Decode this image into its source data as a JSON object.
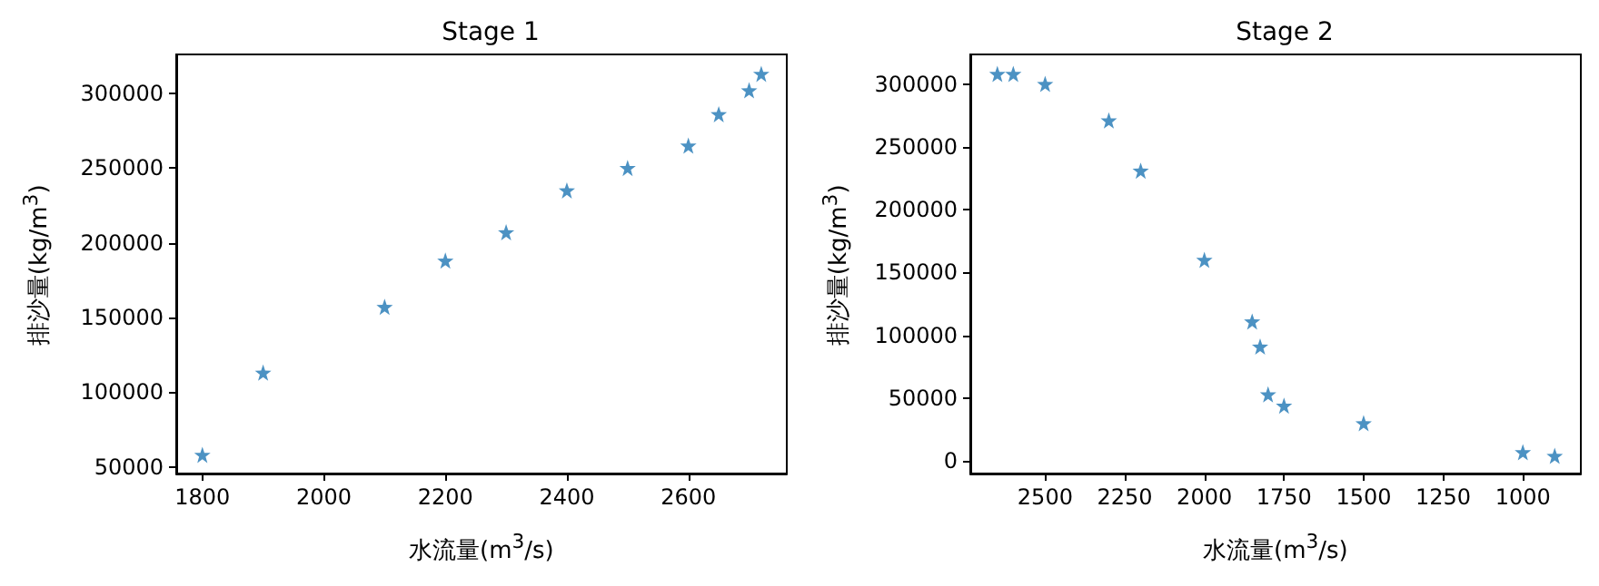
{
  "chart_data": [
    {
      "type": "scatter",
      "title": "Stage 1",
      "xlabel": "水流量(m$^{3}$/s)",
      "ylabel": "排沙量(kg/m$^{3}$)",
      "x": [
        1800,
        1900,
        2100,
        2200,
        2300,
        2400,
        2500,
        2600,
        2650,
        2700,
        2720
      ],
      "series": [
        {
          "color": "#1f77b4",
          "values": [
            58000,
            113000,
            157000,
            188000,
            207000,
            235000,
            250000,
            265000,
            286000,
            302000,
            313000
          ]
        }
      ],
      "xlim": [
        1757,
        2762
      ],
      "xticks": [
        1800,
        2000,
        2200,
        2400,
        2600
      ],
      "ylim": [
        45500,
        326000
      ],
      "yticks": [
        50000,
        100000,
        150000,
        200000,
        250000,
        300000
      ],
      "marker": "star",
      "grid": false
    },
    {
      "type": "scatter",
      "title": "Stage 2",
      "xlabel": "水流量(m$^{3}$/s)",
      "ylabel": "排沙量(kg/m$^{3}$)",
      "x": [
        2650,
        2600,
        2500,
        2300,
        2200,
        2000,
        1850,
        1825,
        1800,
        1750,
        1500,
        1000,
        900
      ],
      "series": [
        {
          "color": "#1f77b4",
          "values": [
            308000,
            308000,
            300000,
            271000,
            231000,
            160000,
            111000,
            91000,
            53000,
            44000,
            30000,
            7000,
            4000
          ]
        }
      ],
      "xlim": [
        2735,
        818
      ],
      "xticks": [
        2500,
        2250,
        2000,
        1750,
        1500,
        1250,
        1000
      ],
      "ylim": [
        -10000,
        323500
      ],
      "yticks": [
        0,
        50000,
        100000,
        150000,
        200000,
        250000,
        300000
      ],
      "marker": "star",
      "grid": false
    }
  ]
}
